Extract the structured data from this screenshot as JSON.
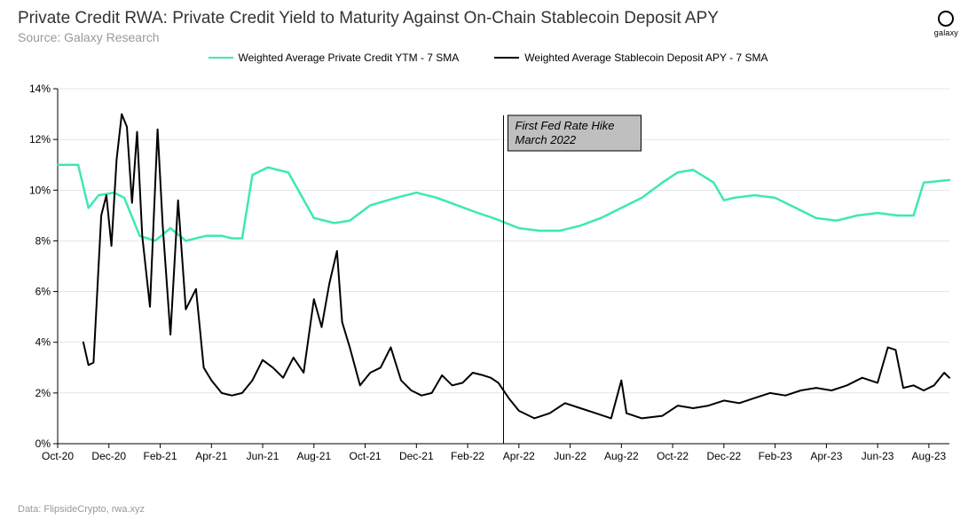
{
  "header": {
    "title": "Private Credit RWA: Private Credit Yield to Maturity Against On-Chain Stablecoin Deposit APY",
    "subtitle": "Source: Galaxy Research",
    "logo_text": "galaxy"
  },
  "legend": {
    "series_a_label": "Weighted Average Private Credit YTM - 7 SMA",
    "series_b_label": "Weighted Average Stablecoin Deposit APY - 7 SMA"
  },
  "chart": {
    "type": "line",
    "background_color": "#ffffff",
    "grid_color": "#cccccc",
    "axis_color": "#000000",
    "text_color": "#000000",
    "font_size_ticks": 12,
    "font_size_title": 19,
    "font_size_subtitle": 14,
    "ylim": [
      0,
      14
    ],
    "ytick_step": 2,
    "ytick_suffix": "%",
    "x_labels": [
      "Oct-20",
      "Dec-20",
      "Feb-21",
      "Apr-21",
      "Jun-21",
      "Aug-21",
      "Oct-21",
      "Dec-21",
      "Feb-22",
      "Apr-22",
      "Jun-22",
      "Aug-22",
      "Oct-22",
      "Dec-22",
      "Feb-23",
      "Apr-23",
      "Jun-23",
      "Aug-23"
    ],
    "series_a": {
      "name": "Private Credit YTM",
      "color": "#3de8b5",
      "line_width": 2.5,
      "data": [
        [
          0,
          11.0
        ],
        [
          0.4,
          11.0
        ],
        [
          0.6,
          9.3
        ],
        [
          0.8,
          9.8
        ],
        [
          1.1,
          9.9
        ],
        [
          1.3,
          9.7
        ],
        [
          1.6,
          8.2
        ],
        [
          1.9,
          8.0
        ],
        [
          2.2,
          8.5
        ],
        [
          2.5,
          8.0
        ],
        [
          2.9,
          8.2
        ],
        [
          3.2,
          8.2
        ],
        [
          3.4,
          8.1
        ],
        [
          3.6,
          8.1
        ],
        [
          3.8,
          10.6
        ],
        [
          4.1,
          10.9
        ],
        [
          4.5,
          10.7
        ],
        [
          5.0,
          8.9
        ],
        [
          5.4,
          8.7
        ],
        [
          5.7,
          8.8
        ],
        [
          6.1,
          9.4
        ],
        [
          6.6,
          9.7
        ],
        [
          7.0,
          9.9
        ],
        [
          7.4,
          9.7
        ],
        [
          7.8,
          9.4
        ],
        [
          8.2,
          9.1
        ],
        [
          8.5,
          8.9
        ],
        [
          9.0,
          8.5
        ],
        [
          9.4,
          8.4
        ],
        [
          9.8,
          8.4
        ],
        [
          10.2,
          8.6
        ],
        [
          10.6,
          8.9
        ],
        [
          11.0,
          9.3
        ],
        [
          11.4,
          9.7
        ],
        [
          11.8,
          10.3
        ],
        [
          12.1,
          10.7
        ],
        [
          12.4,
          10.8
        ],
        [
          12.8,
          10.3
        ],
        [
          13.0,
          9.6
        ],
        [
          13.2,
          9.7
        ],
        [
          13.6,
          9.8
        ],
        [
          14.0,
          9.7
        ],
        [
          14.4,
          9.3
        ],
        [
          14.8,
          8.9
        ],
        [
          15.2,
          8.8
        ],
        [
          15.6,
          9.0
        ],
        [
          16.0,
          9.1
        ],
        [
          16.4,
          9.0
        ],
        [
          16.7,
          9.0
        ],
        [
          16.9,
          10.3
        ],
        [
          17.4,
          10.4
        ]
      ]
    },
    "series_b": {
      "name": "Stablecoin Deposit APY",
      "color": "#000000",
      "line_width": 2,
      "data": [
        [
          0.5,
          4.0
        ],
        [
          0.6,
          3.1
        ],
        [
          0.7,
          3.2
        ],
        [
          0.85,
          9.0
        ],
        [
          0.95,
          9.8
        ],
        [
          1.05,
          7.8
        ],
        [
          1.15,
          11.2
        ],
        [
          1.25,
          13.0
        ],
        [
          1.35,
          12.5
        ],
        [
          1.45,
          9.5
        ],
        [
          1.55,
          12.3
        ],
        [
          1.65,
          8.2
        ],
        [
          1.8,
          5.4
        ],
        [
          1.95,
          12.4
        ],
        [
          2.05,
          8.6
        ],
        [
          2.2,
          4.3
        ],
        [
          2.35,
          9.6
        ],
        [
          2.5,
          5.3
        ],
        [
          2.7,
          6.1
        ],
        [
          2.85,
          3.0
        ],
        [
          3.0,
          2.5
        ],
        [
          3.2,
          2.0
        ],
        [
          3.4,
          1.9
        ],
        [
          3.6,
          2.0
        ],
        [
          3.8,
          2.5
        ],
        [
          4.0,
          3.3
        ],
        [
          4.2,
          3.0
        ],
        [
          4.4,
          2.6
        ],
        [
          4.6,
          3.4
        ],
        [
          4.8,
          2.8
        ],
        [
          5.0,
          5.7
        ],
        [
          5.15,
          4.6
        ],
        [
          5.3,
          6.3
        ],
        [
          5.45,
          7.6
        ],
        [
          5.55,
          4.8
        ],
        [
          5.7,
          3.8
        ],
        [
          5.9,
          2.3
        ],
        [
          6.1,
          2.8
        ],
        [
          6.3,
          3.0
        ],
        [
          6.5,
          3.8
        ],
        [
          6.7,
          2.5
        ],
        [
          6.9,
          2.1
        ],
        [
          7.1,
          1.9
        ],
        [
          7.3,
          2.0
        ],
        [
          7.5,
          2.7
        ],
        [
          7.7,
          2.3
        ],
        [
          7.9,
          2.4
        ],
        [
          8.1,
          2.8
        ],
        [
          8.3,
          2.7
        ],
        [
          8.45,
          2.6
        ],
        [
          8.6,
          2.4
        ],
        [
          8.8,
          1.8
        ],
        [
          9.0,
          1.3
        ],
        [
          9.3,
          1.0
        ],
        [
          9.6,
          1.2
        ],
        [
          9.9,
          1.6
        ],
        [
          10.2,
          1.4
        ],
        [
          10.5,
          1.2
        ],
        [
          10.8,
          1.0
        ],
        [
          11.0,
          2.5
        ],
        [
          11.1,
          1.2
        ],
        [
          11.4,
          1.0
        ],
        [
          11.8,
          1.1
        ],
        [
          12.1,
          1.5
        ],
        [
          12.4,
          1.4
        ],
        [
          12.7,
          1.5
        ],
        [
          13.0,
          1.7
        ],
        [
          13.3,
          1.6
        ],
        [
          13.6,
          1.8
        ],
        [
          13.9,
          2.0
        ],
        [
          14.2,
          1.9
        ],
        [
          14.5,
          2.1
        ],
        [
          14.8,
          2.2
        ],
        [
          15.1,
          2.1
        ],
        [
          15.4,
          2.3
        ],
        [
          15.7,
          2.6
        ],
        [
          16.0,
          2.4
        ],
        [
          16.2,
          3.8
        ],
        [
          16.35,
          3.7
        ],
        [
          16.5,
          2.2
        ],
        [
          16.7,
          2.3
        ],
        [
          16.9,
          2.1
        ],
        [
          17.1,
          2.3
        ],
        [
          17.3,
          2.8
        ],
        [
          17.4,
          2.6
        ]
      ]
    },
    "annotation": {
      "x": 8.7,
      "text_line1": "First Fed Rate Hike",
      "text_line2": "March 2022",
      "box_fill": "#bfbfbf",
      "box_stroke": "#000000"
    }
  },
  "footer": {
    "text": "Data: FlipsideCrypto, rwa.xyz"
  }
}
